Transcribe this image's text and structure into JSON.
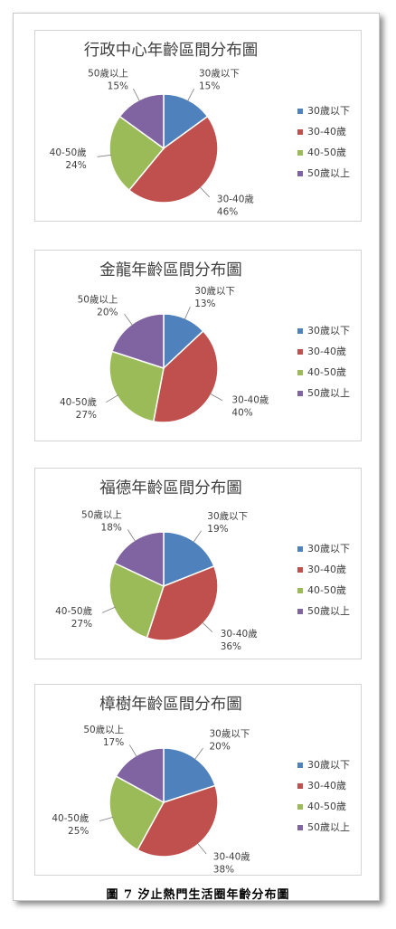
{
  "figure": {
    "caption": "圖 7  汐止熱門生活圈年齡分布圖"
  },
  "legend": {
    "items": [
      "30歲以下",
      "30-40歲",
      "40-50歲",
      "50歲以上"
    ],
    "colors": [
      "#4f81bd",
      "#c0504d",
      "#9bbb59",
      "#8064a2"
    ]
  },
  "chart_data": [
    {
      "type": "pie",
      "title": "行政中心年齡區間分布圖",
      "categories": [
        "30歲以下",
        "30-40歲",
        "40-50歲",
        "50歲以上"
      ],
      "values": [
        15,
        46,
        24,
        15
      ],
      "value_labels": [
        "15%",
        "46%",
        "24%",
        "15%"
      ],
      "legend_position": "right"
    },
    {
      "type": "pie",
      "title": "金龍年齡區間分布圖",
      "categories": [
        "30歲以下",
        "30-40歲",
        "40-50歲",
        "50歲以上"
      ],
      "values": [
        13,
        40,
        27,
        20
      ],
      "value_labels": [
        "13%",
        "40%",
        "27%",
        "20%"
      ],
      "legend_position": "right"
    },
    {
      "type": "pie",
      "title": "福德年齡區間分布圖",
      "categories": [
        "30歲以下",
        "30-40歲",
        "40-50歲",
        "50歲以上"
      ],
      "values": [
        19,
        36,
        27,
        18
      ],
      "value_labels": [
        "19%",
        "36%",
        "27%",
        "18%"
      ],
      "legend_position": "right"
    },
    {
      "type": "pie",
      "title": "樟樹年齡區間分布圖",
      "categories": [
        "30歲以下",
        "30-40歲",
        "40-50歲",
        "50歲以上"
      ],
      "values": [
        20,
        38,
        25,
        17
      ],
      "value_labels": [
        "20%",
        "38%",
        "25%",
        "17%"
      ],
      "legend_position": "right"
    }
  ]
}
